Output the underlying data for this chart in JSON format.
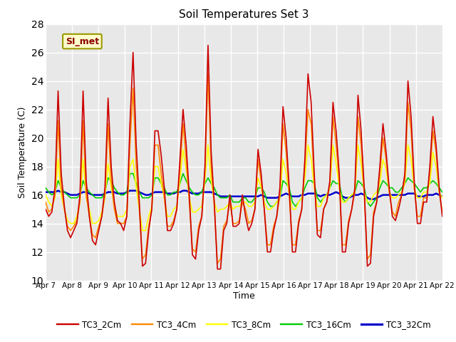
{
  "title": "Soil Temperatures Set 3",
  "xlabel": "Time",
  "ylabel": "Soil Temperature (C)",
  "ylim": [
    10,
    28
  ],
  "yticks": [
    10,
    12,
    14,
    16,
    18,
    20,
    22,
    24,
    26,
    28
  ],
  "x_tick_labels": [
    "Apr 7",
    "Apr 8",
    "Apr 9",
    "Apr 10",
    "Apr 11",
    "Apr 12",
    "Apr 13",
    "Apr 14",
    "Apr 15",
    "Apr 16",
    "Apr 17",
    "Apr 18",
    "Apr 19",
    "Apr 20",
    "Apr 21",
    "Apr 22"
  ],
  "x_tick_positions": [
    0,
    1,
    2,
    3,
    4,
    5,
    6,
    7,
    8,
    9,
    10,
    11,
    12,
    13,
    14,
    15
  ],
  "annotation_text": "SI_met",
  "series_colors": {
    "TC3_2Cm": "#cc0000",
    "TC3_4Cm": "#ff8800",
    "TC3_8Cm": "#ffff00",
    "TC3_16Cm": "#00cc00",
    "TC3_32Cm": "#0000cc"
  },
  "series_lw": {
    "TC3_2Cm": 1.2,
    "TC3_4Cm": 1.2,
    "TC3_8Cm": 1.2,
    "TC3_16Cm": 1.2,
    "TC3_32Cm": 1.8
  },
  "legend_colors": [
    "#cc0000",
    "#ff8800",
    "#ffff00",
    "#00cc00",
    "#0000cc"
  ],
  "legend_labels": [
    "TC3_2Cm",
    "TC3_4Cm",
    "TC3_8Cm",
    "TC3_16Cm",
    "TC3_32Cm"
  ],
  "bg_color": "#ffffff",
  "plot_bg": "#e8e8e8",
  "grid_color": "#ffffff",
  "TC3_2Cm": [
    15.0,
    14.5,
    14.8,
    16.5,
    23.3,
    17.5,
    15.2,
    13.5,
    13.0,
    13.5,
    14.0,
    16.0,
    23.3,
    17.0,
    14.5,
    12.8,
    12.5,
    13.5,
    14.5,
    16.5,
    22.8,
    18.0,
    15.5,
    14.2,
    14.0,
    13.5,
    14.5,
    21.0,
    26.0,
    19.5,
    15.5,
    11.0,
    11.2,
    13.5,
    15.0,
    20.5,
    20.5,
    18.8,
    16.5,
    13.5,
    13.5,
    14.0,
    15.0,
    18.5,
    22.0,
    19.5,
    16.0,
    11.8,
    11.5,
    13.5,
    14.5,
    18.0,
    26.5,
    19.0,
    15.5,
    10.8,
    10.8,
    13.5,
    14.0,
    16.0,
    13.8,
    13.8,
    14.0,
    16.0,
    14.5,
    13.5,
    14.0,
    15.0,
    19.2,
    17.5,
    15.0,
    12.0,
    12.0,
    13.5,
    14.5,
    16.5,
    22.2,
    20.0,
    16.5,
    12.0,
    12.0,
    14.0,
    15.0,
    18.5,
    24.5,
    22.5,
    17.5,
    13.2,
    13.0,
    15.0,
    15.5,
    17.0,
    22.5,
    20.5,
    17.5,
    12.0,
    12.0,
    14.0,
    15.0,
    16.5,
    23.0,
    20.5,
    16.5,
    11.0,
    11.2,
    14.5,
    15.5,
    18.0,
    21.0,
    19.0,
    16.5,
    14.5,
    14.2,
    15.0,
    16.0,
    17.5,
    24.0,
    21.5,
    17.0,
    14.0,
    14.0,
    15.5,
    15.5,
    18.0,
    21.5,
    19.5,
    16.5,
    14.5
  ],
  "TC3_4Cm": [
    15.5,
    14.8,
    15.0,
    16.0,
    21.2,
    16.5,
    15.0,
    13.8,
    13.5,
    13.8,
    14.2,
    15.5,
    21.2,
    16.0,
    14.5,
    13.2,
    13.0,
    13.8,
    14.5,
    16.0,
    21.0,
    17.0,
    15.0,
    14.0,
    14.0,
    14.0,
    14.5,
    19.5,
    23.5,
    18.0,
    15.0,
    11.5,
    11.8,
    13.8,
    15.0,
    19.5,
    19.5,
    17.5,
    15.8,
    13.8,
    13.8,
    14.2,
    15.0,
    17.8,
    21.0,
    18.5,
    15.5,
    12.2,
    12.0,
    13.8,
    14.5,
    17.5,
    24.5,
    18.0,
    15.2,
    11.2,
    11.5,
    13.8,
    14.2,
    15.5,
    14.0,
    14.0,
    14.2,
    15.5,
    15.0,
    14.0,
    14.2,
    15.0,
    18.5,
    17.0,
    15.0,
    12.5,
    12.5,
    13.8,
    14.5,
    16.0,
    21.0,
    19.0,
    16.0,
    12.5,
    12.5,
    14.2,
    15.0,
    18.0,
    22.0,
    21.0,
    17.0,
    13.5,
    13.5,
    15.0,
    15.5,
    16.8,
    21.5,
    19.5,
    17.0,
    12.5,
    12.5,
    14.2,
    15.0,
    16.2,
    21.5,
    19.5,
    16.0,
    11.5,
    11.8,
    14.8,
    15.5,
    17.5,
    20.0,
    18.5,
    16.2,
    14.8,
    14.5,
    15.5,
    16.0,
    17.0,
    22.5,
    20.5,
    16.5,
    14.5,
    14.5,
    15.8,
    15.8,
    17.5,
    20.5,
    19.0,
    16.2,
    14.8
  ],
  "TC3_8Cm": [
    16.0,
    15.5,
    15.2,
    15.8,
    18.5,
    16.0,
    15.0,
    14.2,
    14.0,
    14.0,
    14.5,
    15.5,
    18.5,
    15.8,
    15.0,
    14.0,
    14.0,
    14.2,
    14.8,
    15.8,
    18.2,
    16.5,
    15.2,
    14.5,
    14.5,
    14.5,
    15.0,
    18.0,
    18.5,
    16.5,
    15.0,
    13.5,
    13.5,
    14.5,
    15.2,
    18.0,
    18.0,
    16.8,
    15.8,
    14.5,
    14.5,
    15.0,
    15.2,
    17.0,
    19.2,
    17.8,
    15.8,
    14.8,
    14.8,
    15.0,
    15.2,
    17.0,
    19.5,
    17.0,
    15.5,
    14.8,
    15.0,
    15.0,
    15.2,
    15.5,
    15.0,
    15.2,
    15.2,
    15.5,
    15.5,
    15.2,
    15.2,
    15.5,
    17.2,
    16.5,
    15.5,
    15.0,
    15.0,
    15.2,
    15.5,
    15.8,
    18.5,
    17.5,
    16.0,
    15.0,
    15.0,
    15.5,
    15.8,
    17.2,
    19.5,
    18.5,
    16.5,
    15.2,
    15.2,
    15.8,
    16.0,
    16.5,
    19.5,
    18.2,
    16.5,
    15.5,
    15.5,
    15.8,
    16.0,
    16.2,
    19.5,
    18.2,
    16.2,
    15.5,
    15.5,
    16.0,
    16.2,
    16.8,
    18.5,
    17.8,
    16.2,
    15.8,
    15.8,
    16.0,
    16.2,
    16.8,
    19.5,
    18.5,
    16.5,
    15.8,
    15.8,
    16.2,
    16.2,
    16.8,
    19.0,
    18.0,
    16.2,
    15.8
  ],
  "TC3_16Cm": [
    16.5,
    16.2,
    16.0,
    16.2,
    17.0,
    16.5,
    16.2,
    16.0,
    15.8,
    15.8,
    15.8,
    16.0,
    17.0,
    16.5,
    16.2,
    16.0,
    15.8,
    15.8,
    15.8,
    16.2,
    17.2,
    17.0,
    16.5,
    16.2,
    16.0,
    16.0,
    16.2,
    17.5,
    17.5,
    16.8,
    16.2,
    15.8,
    15.8,
    15.8,
    16.0,
    17.2,
    17.2,
    16.8,
    16.5,
    16.0,
    16.0,
    16.2,
    16.2,
    16.8,
    17.5,
    17.0,
    16.5,
    16.2,
    16.0,
    16.0,
    16.2,
    16.8,
    17.2,
    16.8,
    16.5,
    16.0,
    15.8,
    15.8,
    15.8,
    16.0,
    15.5,
    15.5,
    15.5,
    15.8,
    15.8,
    15.5,
    15.5,
    15.8,
    16.5,
    16.5,
    16.2,
    15.5,
    15.2,
    15.2,
    15.5,
    15.8,
    17.0,
    16.8,
    16.5,
    15.5,
    15.2,
    15.5,
    15.8,
    16.5,
    17.0,
    17.0,
    16.8,
    15.8,
    15.5,
    15.8,
    16.0,
    16.5,
    17.0,
    16.8,
    16.8,
    15.8,
    15.5,
    15.8,
    16.0,
    16.2,
    17.0,
    16.8,
    16.5,
    15.5,
    15.2,
    15.5,
    15.8,
    16.5,
    17.0,
    16.8,
    16.5,
    16.5,
    16.2,
    16.2,
    16.5,
    16.8,
    17.2,
    17.0,
    16.8,
    16.5,
    16.2,
    16.5,
    16.5,
    16.8,
    17.0,
    16.8,
    16.5,
    16.2
  ],
  "TC3_32Cm": [
    16.2,
    16.2,
    16.2,
    16.2,
    16.3,
    16.2,
    16.2,
    16.1,
    16.0,
    16.0,
    16.0,
    16.1,
    16.2,
    16.2,
    16.1,
    16.0,
    16.0,
    16.0,
    16.0,
    16.1,
    16.2,
    16.2,
    16.2,
    16.1,
    16.1,
    16.1,
    16.2,
    16.3,
    16.3,
    16.3,
    16.2,
    16.1,
    16.0,
    16.0,
    16.1,
    16.2,
    16.2,
    16.2,
    16.2,
    16.1,
    16.1,
    16.1,
    16.2,
    16.2,
    16.3,
    16.3,
    16.2,
    16.1,
    16.1,
    16.1,
    16.2,
    16.2,
    16.2,
    16.2,
    16.1,
    16.0,
    15.9,
    15.9,
    15.9,
    15.9,
    15.9,
    15.9,
    15.9,
    15.9,
    15.9,
    15.9,
    15.9,
    15.9,
    15.9,
    16.0,
    15.9,
    15.8,
    15.8,
    15.8,
    15.8,
    15.9,
    16.0,
    16.1,
    16.0,
    15.9,
    15.9,
    15.9,
    16.0,
    16.0,
    16.1,
    16.1,
    16.1,
    16.0,
    15.9,
    16.0,
    16.0,
    16.0,
    16.1,
    16.2,
    16.1,
    15.9,
    15.8,
    15.8,
    15.9,
    16.0,
    16.0,
    16.1,
    16.0,
    15.8,
    15.7,
    15.7,
    15.8,
    15.9,
    16.0,
    16.0,
    16.0,
    16.0,
    16.0,
    16.0,
    16.0,
    16.0,
    16.1,
    16.1,
    16.1,
    15.9,
    15.9,
    15.9,
    16.0,
    16.0,
    16.0,
    16.1,
    16.0,
    15.9
  ]
}
